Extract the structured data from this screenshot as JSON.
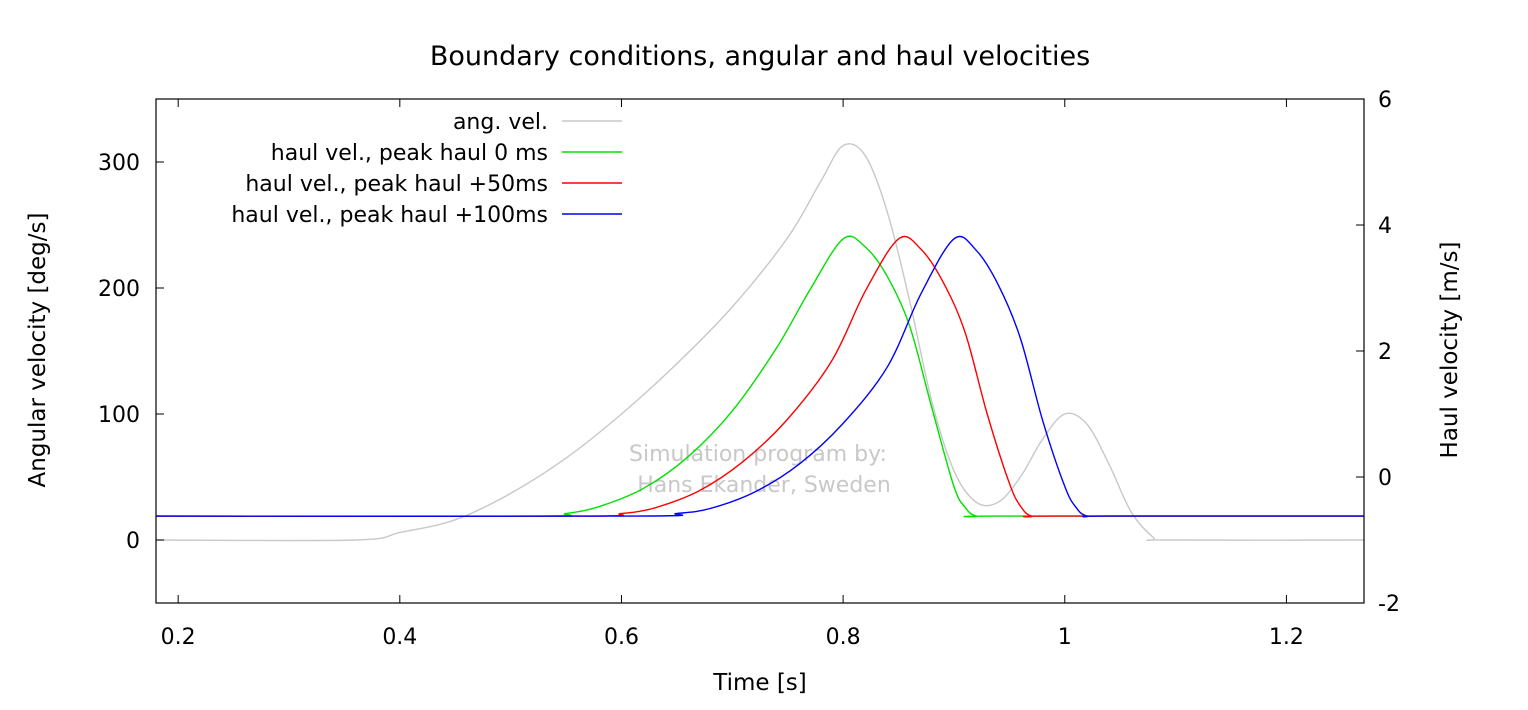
{
  "chart_data": {
    "type": "line",
    "title": "Boundary conditions, angular and haul velocities",
    "xlabel": "Time [s]",
    "ylabel": "Angular velocity [deg/s]",
    "y2label": "Haul velocity [m/s]",
    "xlim": [
      0.18,
      1.27
    ],
    "ylim": [
      -50,
      350
    ],
    "y2lim": [
      -2,
      6
    ],
    "xticks": [
      "0.2",
      "0.4",
      "0.6",
      "0.8",
      "1",
      "1.2"
    ],
    "xtick_values": [
      0.2,
      0.4,
      0.6,
      0.8,
      1.0,
      1.2
    ],
    "yticks": [
      "0",
      "100",
      "200",
      "300"
    ],
    "ytick_values": [
      0,
      100,
      200,
      300
    ],
    "y2ticks": [
      "-2",
      "0",
      "2",
      "4",
      "6"
    ],
    "y2tick_values": [
      -2,
      0,
      2,
      4,
      6
    ],
    "grid": false,
    "legend_position": "top-left",
    "watermark": [
      "Simulation program by:",
      "Hans Ekander, Sweden"
    ],
    "series": [
      {
        "name": "ang. vel.",
        "axis": "y",
        "color": "#c8c8c8",
        "x": [
          0.18,
          0.36,
          0.4,
          0.45,
          0.5,
          0.55,
          0.6,
          0.65,
          0.7,
          0.75,
          0.78,
          0.8,
          0.82,
          0.84,
          0.86,
          0.88,
          0.9,
          0.92,
          0.94,
          0.96,
          0.98,
          1.0,
          1.02,
          1.04,
          1.06,
          1.08,
          1.09,
          1.27
        ],
        "y": [
          0,
          0,
          6,
          16,
          37,
          65,
          100,
          140,
          185,
          240,
          285,
          313,
          305,
          260,
          190,
          110,
          55,
          30,
          30,
          50,
          80,
          100,
          92,
          60,
          22,
          2,
          0,
          0
        ]
      },
      {
        "name": "haul vel., peak haul 0 ms",
        "axis": "y2",
        "color": "#00e000",
        "x": [
          0.18,
          0.52,
          0.55,
          0.58,
          0.62,
          0.66,
          0.7,
          0.74,
          0.77,
          0.8,
          0.82,
          0.84,
          0.86,
          0.88,
          0.9,
          0.91,
          0.92,
          0.94,
          1.27
        ],
        "y": [
          -0.62,
          -0.62,
          -0.58,
          -0.47,
          -0.18,
          0.32,
          1.05,
          2.05,
          2.97,
          3.78,
          3.65,
          3.18,
          2.4,
          1.1,
          -0.15,
          -0.48,
          -0.62,
          -0.62,
          -0.62
        ]
      },
      {
        "name": "haul vel., peak haul +50ms",
        "axis": "y2",
        "color": "#ff0000",
        "x": [
          0.18,
          0.56,
          0.6,
          0.63,
          0.67,
          0.71,
          0.75,
          0.79,
          0.82,
          0.85,
          0.87,
          0.89,
          0.91,
          0.93,
          0.95,
          0.96,
          0.97,
          0.99,
          1.27
        ],
        "y": [
          -0.62,
          -0.62,
          -0.58,
          -0.49,
          -0.22,
          0.25,
          0.92,
          1.85,
          2.95,
          3.78,
          3.62,
          3.1,
          2.3,
          1.0,
          -0.1,
          -0.46,
          -0.62,
          -0.62,
          -0.62
        ]
      },
      {
        "name": "haul vel., peak haul +100ms",
        "axis": "y2",
        "color": "#0000ff",
        "x": [
          0.18,
          0.61,
          0.65,
          0.68,
          0.72,
          0.76,
          0.8,
          0.84,
          0.87,
          0.9,
          0.92,
          0.94,
          0.96,
          0.98,
          1.0,
          1.01,
          1.02,
          1.04,
          1.27
        ],
        "y": [
          -0.62,
          -0.62,
          -0.58,
          -0.5,
          -0.24,
          0.2,
          0.85,
          1.75,
          2.9,
          3.78,
          3.6,
          3.05,
          2.2,
          0.9,
          -0.15,
          -0.48,
          -0.62,
          -0.62,
          -0.62
        ]
      }
    ]
  }
}
